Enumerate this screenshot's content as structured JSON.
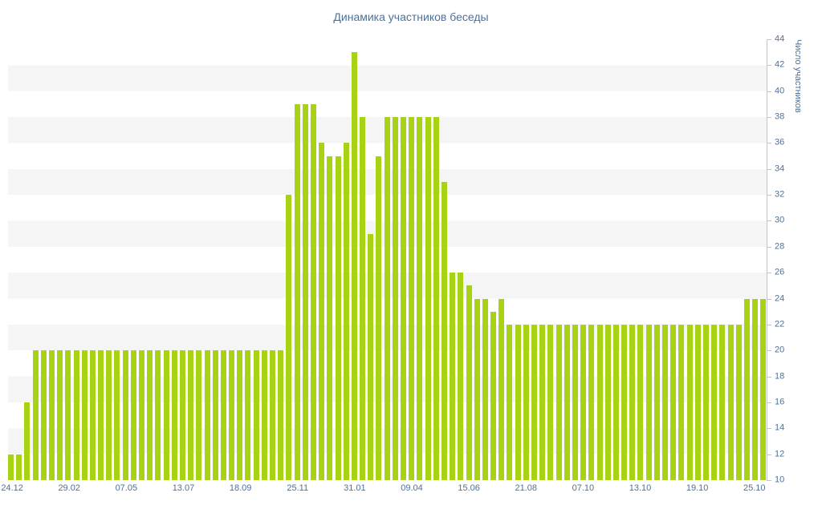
{
  "chart_data": {
    "type": "bar",
    "title": "Динамика участников беседы",
    "ylabel": "Число участников",
    "xlabel": "",
    "ylim": [
      10,
      44
    ],
    "ytick_step": 2,
    "yticks": [
      44,
      42,
      40,
      38,
      36,
      34,
      32,
      30,
      28,
      26,
      24,
      22,
      20,
      18,
      16,
      14,
      12,
      10
    ],
    "grid": "alternating-horizontal-bands",
    "legend": "none",
    "bar_color": "#a8d315",
    "band_color": "#f5f5f5",
    "axis_color": "#c4c4c4",
    "text_color": "#4d7199",
    "values": [
      12,
      12,
      16,
      20,
      20,
      20,
      20,
      20,
      20,
      20,
      20,
      20,
      20,
      20,
      20,
      20,
      20,
      20,
      20,
      20,
      20,
      20,
      20,
      20,
      20,
      20,
      20,
      20,
      20,
      20,
      20,
      20,
      20,
      20,
      32,
      39,
      39,
      39,
      36,
      35,
      35,
      36,
      43,
      38,
      29,
      35,
      38,
      38,
      38,
      38,
      38,
      38,
      38,
      33,
      26,
      26,
      25,
      24,
      24,
      23,
      24,
      22,
      22,
      22,
      22,
      22,
      22,
      22,
      22,
      22,
      22,
      22,
      22,
      22,
      22,
      22,
      22,
      22,
      22,
      22,
      22,
      22,
      22,
      22,
      22,
      22,
      22,
      22,
      22,
      22,
      24,
      24,
      24
    ],
    "x_tick_labels": [
      {
        "index": 0,
        "label": "24.12"
      },
      {
        "index": 7,
        "label": "29.02"
      },
      {
        "index": 14,
        "label": "07.05"
      },
      {
        "index": 21,
        "label": "13.07"
      },
      {
        "index": 28,
        "label": "18.09"
      },
      {
        "index": 35,
        "label": "25.11"
      },
      {
        "index": 42,
        "label": "31.01"
      },
      {
        "index": 49,
        "label": "09.04"
      },
      {
        "index": 56,
        "label": "15.06"
      },
      {
        "index": 63,
        "label": "21.08"
      },
      {
        "index": 70,
        "label": "07.10"
      },
      {
        "index": 77,
        "label": "13.10"
      },
      {
        "index": 84,
        "label": "19.10"
      },
      {
        "index": 91,
        "label": "25.10"
      }
    ]
  }
}
